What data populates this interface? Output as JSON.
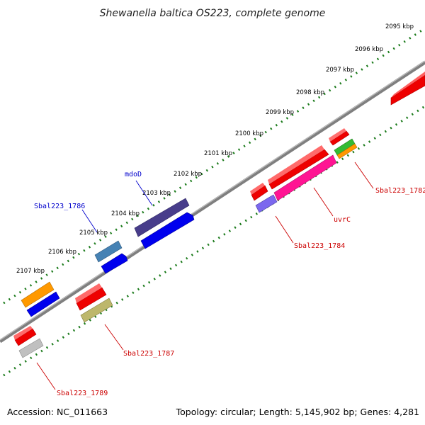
{
  "title": "Shewanella baltica OS223, complete genome",
  "footer": {
    "accession": "Accession: NC_011663",
    "summary": "Topology: circular; Length: 5,145,902 bp; Genes: 4,281"
  },
  "ticks": [
    "2095 kbp",
    "2096 kbp",
    "2097 kbp",
    "2098 kbp",
    "2099 kbp",
    "2100 kbp",
    "2101 kbp",
    "2102 kbp",
    "2103 kbp",
    "2104 kbp",
    "2105 kbp",
    "2106 kbp",
    "2107 kbp"
  ],
  "gene_labels": [
    {
      "text": "mdoD",
      "color": "#0000cc"
    },
    {
      "text": "Sbal223_1786",
      "color": "#0000cc"
    },
    {
      "text": "Sbal223_1782",
      "color": "#cc0000"
    },
    {
      "text": "uvrC",
      "color": "#cc0000"
    },
    {
      "text": "Sbal223_1784",
      "color": "#cc0000"
    },
    {
      "text": "Sbal223_1787",
      "color": "#cc0000"
    },
    {
      "text": "Sbal223_1789",
      "color": "#cc0000"
    }
  ],
  "colors": {
    "backbone": "#808080",
    "tick_marks": "#1a7a1a",
    "forward_gene": "#ee0000",
    "reverse_gene": "#0000ee"
  }
}
